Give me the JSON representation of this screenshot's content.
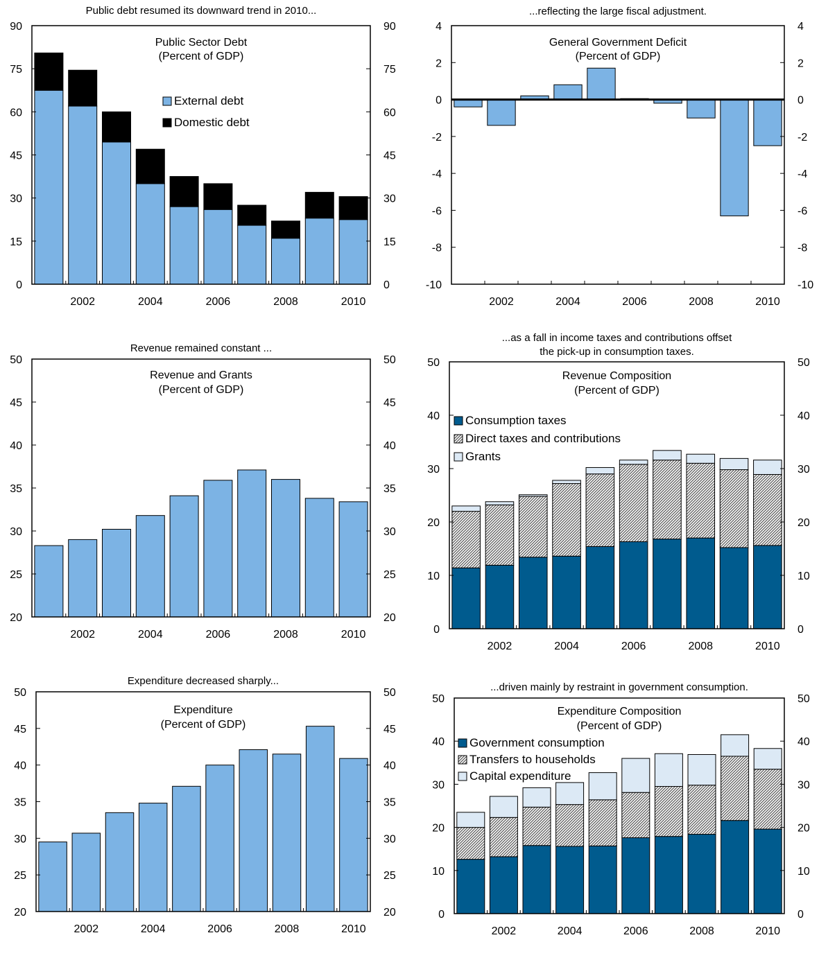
{
  "colors": {
    "light_blue": "#7cb3e4",
    "black": "#000000",
    "dark_blue": "#005b8e",
    "pale_blue": "#dce9f5",
    "hatch_bg": "#f2f2f2"
  },
  "chart_data": [
    {
      "type": "bar",
      "subtype": "stacked",
      "header": [
        "Public debt resumed its downward trend in 2010..."
      ],
      "title": [
        "Public Sector Debt",
        "(Percent of GDP)"
      ],
      "categories": [
        "2001",
        "2002",
        "2003",
        "2004",
        "2005",
        "2006",
        "2007",
        "2008",
        "2009",
        "2010"
      ],
      "tick_labels": [
        "2002",
        "2004",
        "2006",
        "2008",
        "2010"
      ],
      "ylim": [
        0,
        90
      ],
      "yticks": [
        0,
        15,
        30,
        45,
        60,
        75,
        90
      ],
      "legend_position": "center",
      "series": [
        {
          "name": "External debt",
          "color": "#7cb3e4",
          "values": [
            67.5,
            62,
            49.5,
            35,
            27,
            26,
            20.5,
            16,
            23,
            22.5
          ]
        },
        {
          "name": "Domestic debt",
          "color": "#000000",
          "values": [
            13,
            12.5,
            10.5,
            12,
            10.5,
            9,
            7,
            6,
            9,
            8
          ]
        }
      ]
    },
    {
      "type": "bar",
      "header": [
        "...reflecting the large fiscal adjustment."
      ],
      "title": [
        "General Government Deficit",
        "(Percent of GDP)"
      ],
      "categories": [
        "2001",
        "2002",
        "2003",
        "2004",
        "2005",
        "2006",
        "2007",
        "2008",
        "2009",
        "2010"
      ],
      "tick_labels": [
        "2002",
        "2004",
        "2006",
        "2008",
        "2010"
      ],
      "ylim": [
        -10,
        4
      ],
      "yticks": [
        -10,
        -8,
        -6,
        -4,
        -2,
        0,
        2,
        4
      ],
      "series": [
        {
          "color": "#7cb3e4",
          "values": [
            -0.4,
            -1.4,
            0.2,
            0.8,
            1.7,
            0.05,
            -0.2,
            -1.0,
            -6.3,
            -2.5
          ]
        }
      ]
    },
    {
      "type": "bar",
      "header": [
        "Revenue remained constant ..."
      ],
      "title": [
        "Revenue and Grants",
        "(Percent of GDP)"
      ],
      "categories": [
        "2001",
        "2002",
        "2003",
        "2004",
        "2005",
        "2006",
        "2007",
        "2008",
        "2009",
        "2010"
      ],
      "tick_labels": [
        "2002",
        "2004",
        "2006",
        "2008",
        "2010"
      ],
      "ylim": [
        20,
        50
      ],
      "yticks": [
        20,
        25,
        30,
        35,
        40,
        45,
        50
      ],
      "series": [
        {
          "color": "#7cb3e4",
          "values": [
            28.3,
            29.0,
            30.2,
            31.8,
            34.1,
            35.9,
            37.1,
            36.0,
            33.8,
            33.4
          ]
        }
      ]
    },
    {
      "type": "bar",
      "subtype": "stacked",
      "header": [
        "...as a fall in income taxes and contributions offset",
        "the pick-up in consumption taxes."
      ],
      "title": [
        "Revenue Composition",
        "(Percent of GDP)"
      ],
      "categories": [
        "2001",
        "2002",
        "2003",
        "2004",
        "2005",
        "2006",
        "2007",
        "2008",
        "2009",
        "2010"
      ],
      "tick_labels": [
        "2002",
        "2004",
        "2006",
        "2008",
        "2010"
      ],
      "ylim": [
        0,
        50
      ],
      "yticks": [
        0,
        10,
        20,
        30,
        40,
        50
      ],
      "legend_position": "top-left",
      "series": [
        {
          "name": "Consumption taxes",
          "color": "#005b8e",
          "values": [
            11.4,
            11.9,
            13.4,
            13.6,
            15.4,
            16.3,
            16.8,
            17.0,
            15.2,
            15.6
          ]
        },
        {
          "name": "Direct taxes and contributions",
          "pattern": "hatch",
          "values": [
            10.6,
            11.3,
            11.4,
            13.6,
            13.6,
            14.5,
            14.8,
            14.0,
            14.6,
            13.3
          ]
        },
        {
          "name": "Grants",
          "color": "#dce9f5",
          "values": [
            1.0,
            0.6,
            0.3,
            0.6,
            1.2,
            0.8,
            1.8,
            1.7,
            2.1,
            2.7
          ]
        }
      ]
    },
    {
      "type": "bar",
      "header": [
        "Expenditure decreased sharply..."
      ],
      "title": [
        "Expenditure",
        "(Percent of GDP)"
      ],
      "categories": [
        "2001",
        "2002",
        "2003",
        "2004",
        "2005",
        "2006",
        "2007",
        "2008",
        "2009",
        "2010"
      ],
      "tick_labels": [
        "2002",
        "2004",
        "2006",
        "2008",
        "2010"
      ],
      "ylim": [
        20,
        50
      ],
      "yticks": [
        20,
        25,
        30,
        35,
        40,
        45,
        50
      ],
      "series": [
        {
          "color": "#7cb3e4",
          "values": [
            29.5,
            30.7,
            33.5,
            34.8,
            37.1,
            40.0,
            42.1,
            41.5,
            45.3,
            40.9
          ]
        }
      ]
    },
    {
      "type": "bar",
      "subtype": "stacked",
      "header": [
        "...driven mainly by restraint  in government consumption."
      ],
      "title": [
        "Expenditure Composition",
        "(Percent of GDP)"
      ],
      "categories": [
        "2001",
        "2002",
        "2003",
        "2004",
        "2005",
        "2006",
        "2007",
        "2008",
        "2009",
        "2010"
      ],
      "tick_labels": [
        "2002",
        "2004",
        "2006",
        "2008",
        "2010"
      ],
      "ylim": [
        0,
        50
      ],
      "yticks": [
        0,
        10,
        20,
        30,
        40,
        50
      ],
      "legend_position": "top-left",
      "series": [
        {
          "name": "Government consumption",
          "color": "#005b8e",
          "values": [
            12.6,
            13.2,
            15.8,
            15.6,
            15.7,
            17.6,
            17.9,
            18.4,
            21.6,
            19.6
          ]
        },
        {
          "name": "Transfers to households",
          "pattern": "hatch",
          "values": [
            7.4,
            9.1,
            8.9,
            9.7,
            10.7,
            10.5,
            11.6,
            11.4,
            14.9,
            13.9
          ]
        },
        {
          "name": "Capital expenditure",
          "color": "#dce9f5",
          "values": [
            3.5,
            4.9,
            4.5,
            5.1,
            6.3,
            7.9,
            7.6,
            7.1,
            5.0,
            4.8
          ]
        }
      ]
    }
  ]
}
